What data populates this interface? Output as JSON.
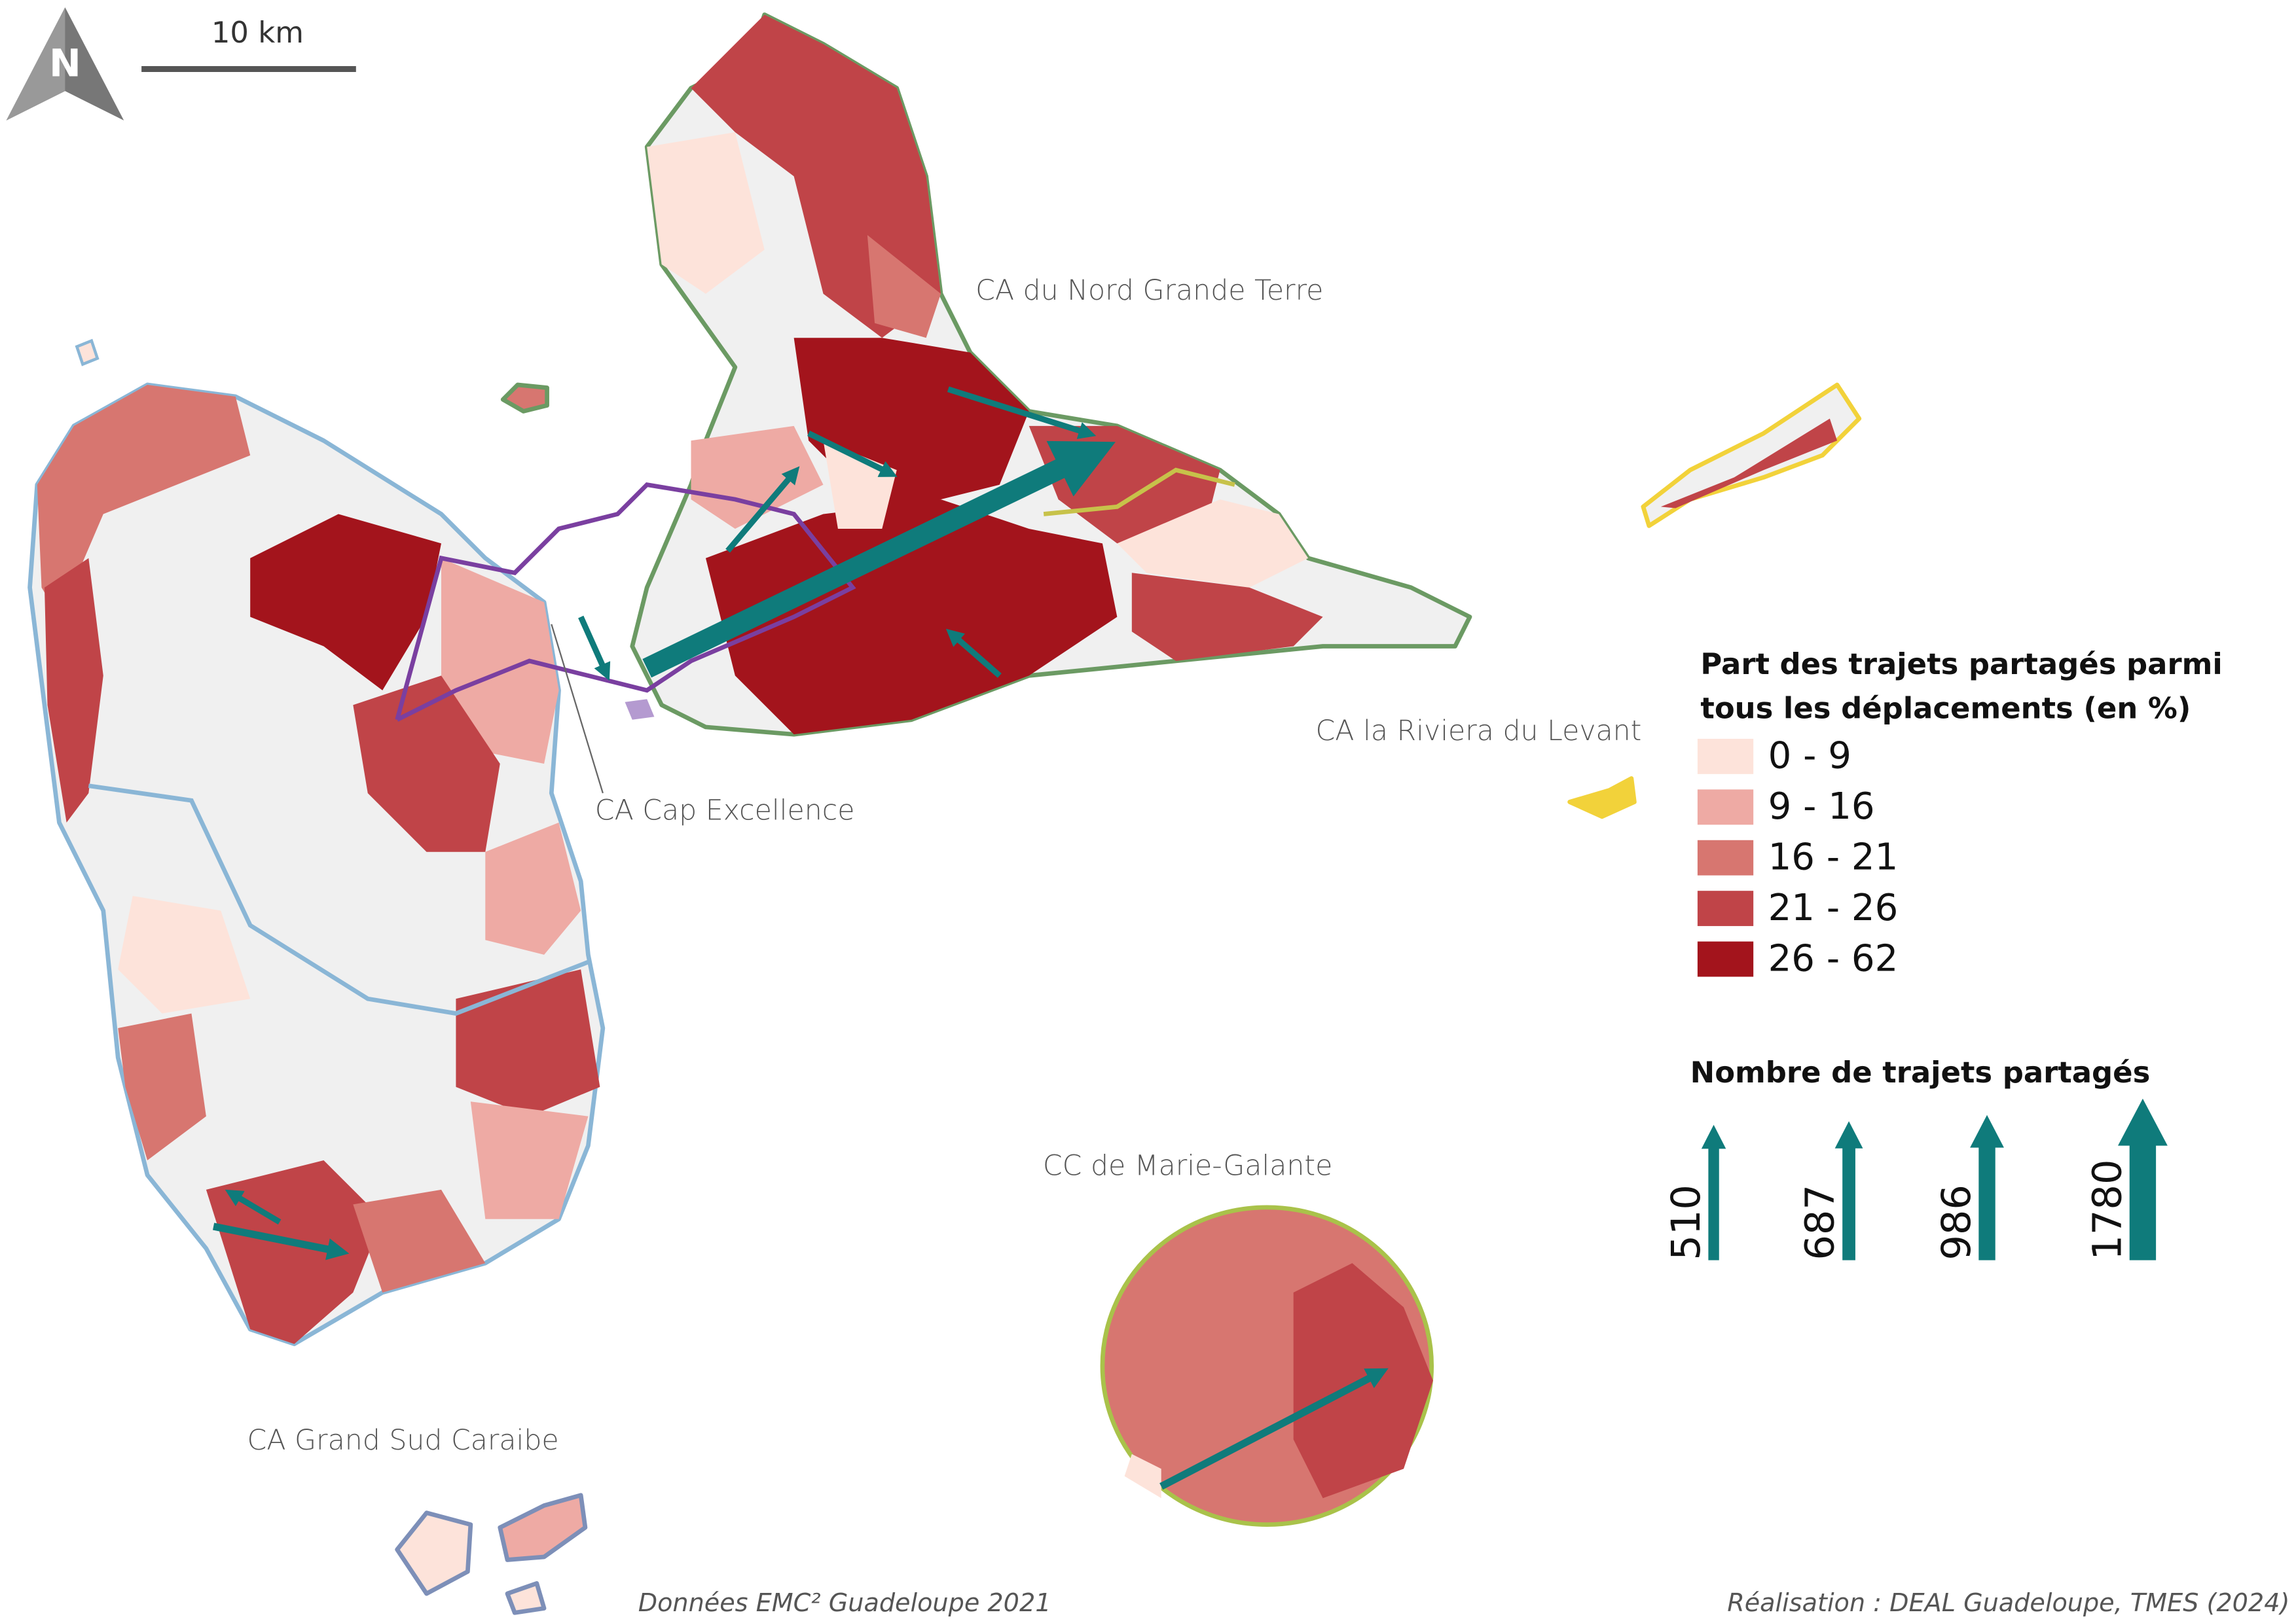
{
  "north_label": "N",
  "scale_bar": "10 km",
  "region_labels": [
    "CA du Nord Grande Terre",
    "CA la Riviera du Levant",
    "CA Cap Excellence",
    "CC de Marie-Galante",
    "CA Grand Sud Caraibe"
  ],
  "legend": {
    "title_lines": [
      "Part des trajets partagés parmi",
      "tous les déplacements (en %)"
    ],
    "classes": [
      {
        "label": "0 - 9",
        "color": "#fde3da"
      },
      {
        "label": "9 - 16",
        "color": "#eeaaa4"
      },
      {
        "label": "16 - 21",
        "color": "#d77670"
      },
      {
        "label": "21 - 26",
        "color": "#c04448"
      },
      {
        "label": "26 - 62",
        "color": "#a3141c"
      }
    ]
  },
  "flow_legend": {
    "title": "Nombre de trajets partagés",
    "values": [
      510,
      687,
      986,
      1780
    ],
    "color": "#0f7b7b"
  },
  "footer": {
    "source": "Données  EMC² Guadeloupe 2021",
    "credit": "Réalisation : DEAL Guadeloupe, TMES (2024)"
  }
}
